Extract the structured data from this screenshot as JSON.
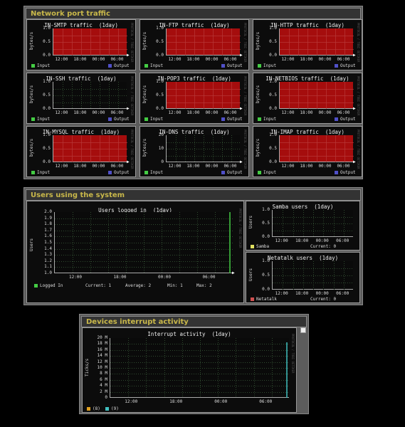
{
  "sections": {
    "network": {
      "title": "Network port traffic",
      "graphs": [
        {
          "title": "IN-SMTP traffic  (1day)",
          "ylabel": "bytes/s",
          "yticks": [
            "1.0",
            "0.5",
            "0.0"
          ],
          "xticks": [
            "12:00",
            "18:00",
            "00:00",
            "06:00"
          ],
          "filled": true
        },
        {
          "title": "IN-FTP traffic  (1day)",
          "ylabel": "bytes/s",
          "yticks": [
            "1.0",
            "0.5",
            "0.0"
          ],
          "xticks": [
            "12:00",
            "18:00",
            "00:00",
            "06:00"
          ],
          "filled": true
        },
        {
          "title": "IN-HTTP traffic  (1day)",
          "ylabel": "bytes/s",
          "yticks": [
            "1.0",
            "0.5",
            "0.0"
          ],
          "xticks": [
            "12:00",
            "18:00",
            "00:00",
            "06:00"
          ],
          "filled": true
        },
        {
          "title": "IN-SSH traffic  (1day)",
          "ylabel": "bytes/s",
          "yticks": [
            "1.0",
            "0.5",
            "0.0"
          ],
          "xticks": [
            "12:00",
            "18:00",
            "00:00",
            "06:00"
          ],
          "filled": false
        },
        {
          "title": "IN-POP3 traffic  (1day)",
          "ylabel": "bytes/s",
          "yticks": [
            "1.0",
            "0.5",
            "0.0"
          ],
          "xticks": [
            "12:00",
            "18:00",
            "00:00",
            "06:00"
          ],
          "filled": true
        },
        {
          "title": "IN-NETBIOS traffic  (1day)",
          "ylabel": "bytes/s",
          "yticks": [
            "1.0",
            "0.5",
            "0.0"
          ],
          "xticks": [
            "12:00",
            "18:00",
            "00:00",
            "06:00"
          ],
          "filled": true
        },
        {
          "title": "IN-MYSQL traffic  (1day)",
          "ylabel": "bytes/s",
          "yticks": [
            "1.0",
            "0.5",
            "0.0"
          ],
          "xticks": [
            "12:00",
            "18:00",
            "00:00",
            "06:00"
          ],
          "filled": true
        },
        {
          "title": "IN-DNS traffic  (1day)",
          "ylabel": "bytes/s",
          "yticks": [
            "20",
            "10",
            "0"
          ],
          "xticks": [
            "12:00",
            "18:00",
            "00:00",
            "06:00"
          ],
          "filled": false
        },
        {
          "title": "IN-IMAP traffic  (1day)",
          "ylabel": "bytes/s",
          "yticks": [
            "1.0",
            "0.5",
            "0.0"
          ],
          "xticks": [
            "12:00",
            "18:00",
            "00:00",
            "06:00"
          ],
          "filled": true
        }
      ],
      "legend_in": "Input",
      "legend_out": "Output",
      "side_text": "PROTOCOL / TOBI OETIKER"
    },
    "users": {
      "title": "Users using the system",
      "main": {
        "title": "Users logged in  (1day)",
        "ylabel": "Users",
        "yticks": [
          "2.0",
          "1.9",
          "1.8",
          "1.7",
          "1.6",
          "1.5",
          "1.4",
          "1.3",
          "1.2",
          "1.1",
          "1.0"
        ],
        "xticks": [
          "12:00",
          "18:00",
          "00:00",
          "06:00"
        ],
        "legend": "Logged In",
        "stats": {
          "current_label": "Current:",
          "current": "1",
          "average_label": "Average:",
          "average": "2",
          "min_label": "Min:",
          "min": "1",
          "max_label": "Max:",
          "max": "2"
        }
      },
      "samba": {
        "title": "Samba users  (1day)",
        "ylabel": "Users",
        "yticks": [
          "1.0",
          "0.5",
          "0.0"
        ],
        "xticks": [
          "12:00",
          "18:00",
          "00:00",
          "06:00"
        ],
        "legend": "Samba",
        "current_label": "Current:",
        "current": "0"
      },
      "netatalk": {
        "title": "Netatalk users  (1day)",
        "ylabel": "Users",
        "yticks": [
          "1.0",
          "0.5",
          "0.0"
        ],
        "xticks": [
          "12:00",
          "18:00",
          "00:00",
          "06:00"
        ],
        "legend": "Netatalk",
        "current_label": "Current:",
        "current": "0"
      }
    },
    "devices": {
      "title": "Devices interrupt activity",
      "graph": {
        "title": "Interrupt activity  (1day)",
        "ylabel": "Ticks/s",
        "yticks": [
          "20 M",
          "18 M",
          "16 M",
          "14 M",
          "12 M",
          "10 M",
          "8 M",
          "6 M",
          "4 M",
          "2 M",
          "0"
        ],
        "xticks": [
          "12:00",
          "18:00",
          "00:00",
          "06:00"
        ],
        "legend": [
          {
            "label": "(8)"
          },
          {
            "label": "(9)"
          }
        ]
      }
    }
  },
  "colors": {
    "panel": "#5c5c5c",
    "header_text": "#c9b84a",
    "fill": "#a50d0d",
    "input": "#44cc44",
    "output": "#5050c8",
    "users": "#44cc44",
    "samba": "#e0e060",
    "netatalk": "#d05050",
    "irq8": "#e0a020",
    "irq9": "#40c0c0"
  }
}
